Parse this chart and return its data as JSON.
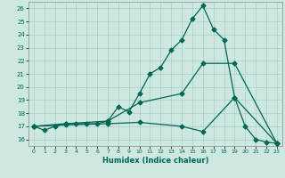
{
  "xlabel": "Humidex (Indice chaleur)",
  "ylabel": "",
  "xlim": [
    -0.5,
    23.5
  ],
  "ylim": [
    15.5,
    26.5
  ],
  "yticks": [
    16,
    17,
    18,
    19,
    20,
    21,
    22,
    23,
    24,
    25,
    26
  ],
  "xticks": [
    0,
    1,
    2,
    3,
    4,
    5,
    6,
    7,
    8,
    9,
    10,
    11,
    12,
    13,
    14,
    15,
    16,
    17,
    18,
    19,
    20,
    21,
    22,
    23
  ],
  "background_color": "#cce8e0",
  "grid_color": "#aacfc8",
  "line_color": "#006655",
  "line1_x": [
    0,
    1,
    2,
    3,
    4,
    5,
    6,
    7,
    8,
    9,
    10,
    11,
    12,
    13,
    14,
    15,
    16,
    17,
    18,
    19,
    20,
    21,
    22,
    23
  ],
  "line1_y": [
    17.0,
    16.7,
    17.0,
    17.2,
    17.2,
    17.2,
    17.2,
    17.4,
    18.5,
    18.1,
    19.5,
    21.0,
    21.5,
    22.8,
    23.6,
    25.2,
    26.2,
    24.4,
    23.6,
    19.2,
    17.0,
    16.0,
    15.8,
    15.7
  ],
  "line2_x": [
    0,
    3,
    7,
    10,
    14,
    16,
    19,
    23
  ],
  "line2_y": [
    17.0,
    17.2,
    17.4,
    18.8,
    19.5,
    21.8,
    21.8,
    15.7
  ],
  "line3_x": [
    0,
    3,
    7,
    10,
    14,
    16,
    19,
    23
  ],
  "line3_y": [
    17.0,
    17.1,
    17.2,
    17.3,
    17.0,
    16.6,
    19.2,
    15.7
  ],
  "marker": "D",
  "markersize": 2.5,
  "linewidth": 0.9
}
